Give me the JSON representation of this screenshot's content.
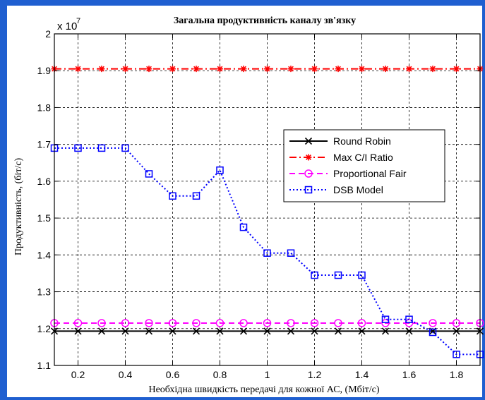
{
  "chart_data": {
    "type": "line",
    "title": "Загальна продуктивність каналу зв'язку",
    "xlabel": "Необхідна швидкість передачі для кожної АС, (Мбіт/с)",
    "ylabel": "Продуктивність, (біт/с)",
    "y_multiplier_label": "x 10",
    "y_multiplier_exp": "7",
    "xlim": [
      0.1,
      1.9
    ],
    "ylim": [
      1.1,
      2.0
    ],
    "xticks": [
      0.2,
      0.4,
      0.6,
      0.8,
      1,
      1.2,
      1.4,
      1.6,
      1.8
    ],
    "xtick_labels": [
      "0.2",
      "0.4",
      "0.6",
      "0.8",
      "1",
      "1.2",
      "1.4",
      "1.6",
      "1.8"
    ],
    "yticks": [
      1.1,
      1.2,
      1.3,
      1.4,
      1.5,
      1.6,
      1.7,
      1.8,
      1.9,
      2.0
    ],
    "ytick_labels": [
      "1.1",
      "1.2",
      "1.3",
      "1.4",
      "1.5",
      "1.6",
      "1.7",
      "1.8",
      "1.9",
      "2"
    ],
    "grid": true,
    "legend_position": "right",
    "x": [
      0.1,
      0.2,
      0.3,
      0.4,
      0.5,
      0.6,
      0.7,
      0.8,
      0.9,
      1.0,
      1.1,
      1.2,
      1.3,
      1.4,
      1.5,
      1.6,
      1.7,
      1.8,
      1.9
    ],
    "series": [
      {
        "name": "Round Robin",
        "color": "#000000",
        "dash": "solid",
        "marker": "x",
        "values": [
          1.193,
          1.193,
          1.193,
          1.193,
          1.193,
          1.193,
          1.193,
          1.193,
          1.193,
          1.193,
          1.193,
          1.193,
          1.193,
          1.193,
          1.193,
          1.193,
          1.193,
          1.193,
          1.193
        ]
      },
      {
        "name": "Max C/I Ratio",
        "color": "#ff0000",
        "dash": "dashdot",
        "marker": "star",
        "values": [
          1.905,
          1.905,
          1.905,
          1.905,
          1.905,
          1.905,
          1.905,
          1.905,
          1.905,
          1.905,
          1.905,
          1.905,
          1.905,
          1.905,
          1.905,
          1.905,
          1.905,
          1.905,
          1.905
        ]
      },
      {
        "name": "Proportional Fair",
        "color": "#ff00ff",
        "dash": "dashed",
        "marker": "circle",
        "values": [
          1.215,
          1.215,
          1.215,
          1.215,
          1.215,
          1.215,
          1.215,
          1.215,
          1.215,
          1.215,
          1.215,
          1.215,
          1.215,
          1.215,
          1.215,
          1.215,
          1.215,
          1.215,
          1.215
        ]
      },
      {
        "name": "DSB Model",
        "color": "#0000ff",
        "dash": "dotted",
        "marker": "square",
        "values": [
          1.69,
          1.69,
          1.69,
          1.69,
          1.62,
          1.56,
          1.56,
          1.63,
          1.475,
          1.405,
          1.405,
          1.345,
          1.345,
          1.345,
          1.225,
          1.225,
          1.19,
          1.13,
          1.13
        ]
      }
    ]
  }
}
